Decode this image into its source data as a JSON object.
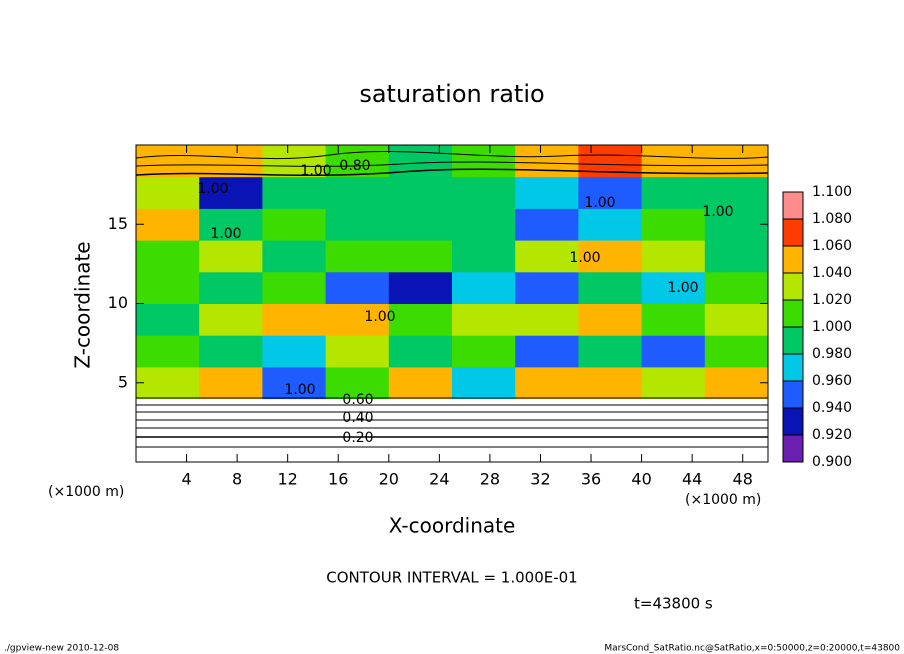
{
  "chart_data": {
    "type": "heatmap",
    "title": "saturation ratio",
    "x_label": "X-coordinate",
    "y_label": "Z-coordinate",
    "x_unit": "(×1000 m)",
    "y_unit": "(×1000 m)",
    "xlim": [
      0,
      50
    ],
    "ylim": [
      0,
      20
    ],
    "xticks": [
      4,
      8,
      12,
      16,
      20,
      24,
      28,
      32,
      36,
      40,
      44,
      48
    ],
    "yticks": [
      5,
      10,
      15
    ],
    "xbins": [
      0,
      5,
      10,
      15,
      20,
      25,
      30,
      35,
      40,
      45,
      50
    ],
    "zbins": [
      0,
      2,
      4,
      6,
      8,
      10,
      12,
      14,
      16,
      18,
      20
    ],
    "z": [
      [
        0.3,
        0.3,
        0.3,
        0.3,
        0.3,
        0.3,
        0.3,
        0.3,
        0.3,
        0.3
      ],
      [
        0.75,
        0.75,
        0.75,
        0.75,
        0.75,
        0.75,
        0.75,
        0.75,
        0.75,
        0.75
      ],
      [
        1.04,
        1.06,
        0.96,
        1.02,
        1.05,
        0.97,
        1.05,
        1.06,
        1.03,
        1.05
      ],
      [
        1.02,
        1.0,
        0.97,
        1.03,
        0.99,
        1.01,
        0.96,
        1.0,
        0.95,
        1.02
      ],
      [
        1.0,
        1.03,
        1.05,
        1.06,
        1.02,
        1.04,
        1.03,
        1.05,
        1.01,
        1.04
      ],
      [
        1.01,
        1.0,
        1.02,
        0.96,
        0.94,
        0.98,
        0.95,
        0.99,
        0.97,
        1.02
      ],
      [
        1.02,
        1.04,
        1.0,
        1.01,
        1.02,
        1.0,
        1.04,
        1.05,
        1.03,
        1.0
      ],
      [
        1.05,
        0.99,
        1.01,
        1.0,
        1.0,
        1.0,
        0.95,
        0.97,
        1.01,
        1.0
      ],
      [
        1.03,
        0.94,
        0.99,
        1.0,
        1.0,
        0.99,
        0.98,
        0.96,
        1.0,
        1.0
      ],
      [
        1.06,
        1.05,
        1.03,
        1.02,
        1.0,
        1.01,
        1.06,
        1.07,
        1.05,
        1.06
      ]
    ],
    "colorbar": {
      "ticks": [
        {
          "value": 0.9,
          "label": "0.900"
        },
        {
          "value": 0.92,
          "label": "0.920"
        },
        {
          "value": 0.94,
          "label": "0.940"
        },
        {
          "value": 0.96,
          "label": "0.960"
        },
        {
          "value": 0.98,
          "label": "0.980"
        },
        {
          "value": 1.0,
          "label": "1.000"
        },
        {
          "value": 1.02,
          "label": "1.020"
        },
        {
          "value": 1.04,
          "label": "1.040"
        },
        {
          "value": 1.06,
          "label": "1.060"
        },
        {
          "value": 1.08,
          "label": "1.080"
        },
        {
          "value": 1.1,
          "label": "1.100"
        }
      ],
      "colors": [
        "#6a1fb0",
        "#0a14b4",
        "#1e5cff",
        "#00c8e6",
        "#00c864",
        "#3cdc00",
        "#b4e600",
        "#ffb400",
        "#ff3c00",
        "#ff8c8c"
      ]
    },
    "contour_labels": [
      "1.00",
      "0.80",
      "1.00",
      "1.00",
      "1.00",
      "1.00",
      "1.00",
      "1.00",
      "1.00",
      "1.00",
      "0.60",
      "0.40",
      "0.20"
    ],
    "contour_interval": "CONTOUR INTERVAL = 1.000E-01",
    "time": "t=43800 s",
    "footer_left": "./gpview-new  2010-12-08",
    "footer_right": "MarsCond_SatRatio.nc@SatRatio,x=0:50000,z=0:20000,t=43800"
  }
}
